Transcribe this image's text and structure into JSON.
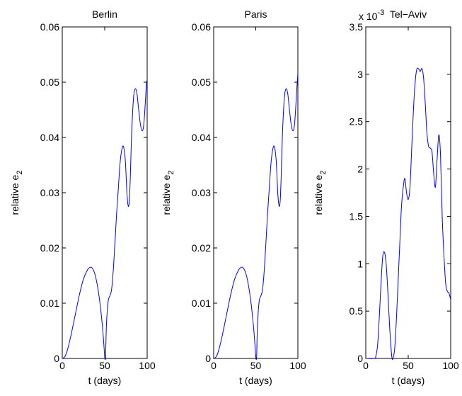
{
  "chart_data": [
    {
      "type": "line",
      "title": "Berlin",
      "xlabel": "t (days)",
      "ylabel": "relative e",
      "ylabel_sub": "2",
      "xlim": [
        0,
        100
      ],
      "ylim": [
        0,
        0.06
      ],
      "xticks": [
        0,
        50,
        100
      ],
      "xtick_labels": [
        "0",
        "50",
        "100"
      ],
      "yticks": [
        0,
        0.01,
        0.02,
        0.03,
        0.04,
        0.05,
        0.06
      ],
      "ytick_labels": [
        "0",
        "0.01",
        "0.02",
        "0.03",
        "0.04",
        "0.05",
        "0.06"
      ],
      "multiplier": "",
      "grid": false,
      "color": "#0000ff",
      "series": [
        {
          "x": [
            0,
            3,
            6,
            10,
            15,
            20,
            25,
            30,
            33,
            35,
            38,
            41,
            44,
            47,
            49,
            50,
            51,
            52,
            54,
            56,
            58,
            60,
            62,
            64,
            66,
            68,
            70,
            72,
            74,
            75,
            76,
            77,
            78,
            79,
            80,
            81,
            82,
            84,
            86,
            88,
            90,
            92,
            94,
            96,
            98,
            99,
            100
          ],
          "y": [
            0,
            0.0003,
            0.0015,
            0.004,
            0.0077,
            0.0114,
            0.0144,
            0.0161,
            0.0165,
            0.0164,
            0.0155,
            0.0135,
            0.0105,
            0.0063,
            0.0025,
            0.0003,
            0.0003,
            0.006,
            0.0103,
            0.0113,
            0.0124,
            0.0158,
            0.0208,
            0.0262,
            0.0307,
            0.0352,
            0.0377,
            0.0384,
            0.0363,
            0.0337,
            0.0303,
            0.0283,
            0.0275,
            0.0285,
            0.0321,
            0.0373,
            0.0418,
            0.0473,
            0.0488,
            0.0479,
            0.045,
            0.0424,
            0.0412,
            0.0423,
            0.0468,
            0.0494,
            0.0505
          ]
        }
      ]
    },
    {
      "type": "line",
      "title": "Paris",
      "xlabel": "t (days)",
      "ylabel": "relative e",
      "ylabel_sub": "2",
      "xlim": [
        0,
        100
      ],
      "ylim": [
        0,
        0.06
      ],
      "xticks": [
        0,
        50,
        100
      ],
      "xtick_labels": [
        "0",
        "50",
        "100"
      ],
      "yticks": [
        0,
        0.01,
        0.02,
        0.03,
        0.04,
        0.05,
        0.06
      ],
      "ytick_labels": [
        "0",
        "0.01",
        "0.02",
        "0.03",
        "0.04",
        "0.05",
        "0.06"
      ],
      "multiplier": "",
      "grid": false,
      "color": "#0000ff",
      "series": [
        {
          "x": [
            0,
            3,
            6,
            10,
            15,
            20,
            25,
            30,
            33,
            35,
            38,
            41,
            44,
            47,
            49,
            50,
            51,
            52,
            54,
            56,
            58,
            60,
            62,
            64,
            66,
            68,
            70,
            72,
            74,
            75,
            76,
            77,
            78,
            79,
            80,
            81,
            82,
            84,
            86,
            88,
            90,
            92,
            94,
            96,
            98,
            99,
            100
          ],
          "y": [
            0,
            0.0003,
            0.0015,
            0.004,
            0.0077,
            0.0114,
            0.0144,
            0.0161,
            0.0165,
            0.0164,
            0.0155,
            0.0135,
            0.0105,
            0.0063,
            0.0025,
            0.0003,
            0.0003,
            0.006,
            0.0103,
            0.0113,
            0.0124,
            0.0158,
            0.0208,
            0.0262,
            0.0307,
            0.0352,
            0.0377,
            0.0384,
            0.0363,
            0.0337,
            0.0303,
            0.0283,
            0.0275,
            0.0285,
            0.0321,
            0.0373,
            0.0418,
            0.0473,
            0.0488,
            0.0479,
            0.045,
            0.0424,
            0.0412,
            0.0423,
            0.0468,
            0.0494,
            0.0515
          ]
        }
      ]
    },
    {
      "type": "line",
      "title": "Tel−Aviv",
      "xlabel": "t (days)",
      "ylabel": "relative e",
      "ylabel_sub": "2",
      "xlim": [
        0,
        100
      ],
      "ylim": [
        0,
        0.0035
      ],
      "xticks": [
        0,
        50,
        100
      ],
      "xtick_labels": [
        "0",
        "50",
        "100"
      ],
      "yticks": [
        0,
        0.0005,
        0.001,
        0.0015,
        0.002,
        0.0025,
        0.003,
        0.0035
      ],
      "ytick_labels": [
        "0",
        "0.5",
        "1",
        "1.5",
        "2",
        "2.5",
        "3",
        "3.5"
      ],
      "multiplier": "x 10",
      "multiplier_exp": "-3",
      "grid": false,
      "color": "#0000ff",
      "series": [
        {
          "x": [
            0,
            10,
            12,
            14,
            16,
            18,
            20,
            22,
            24,
            26,
            28,
            30,
            31,
            32,
            34,
            36,
            38,
            40,
            42,
            44,
            46,
            48,
            50,
            52,
            54,
            56,
            58,
            60,
            62,
            64,
            66,
            68,
            70,
            72,
            74,
            76,
            78,
            80,
            82,
            84,
            86,
            88,
            90,
            92,
            94,
            96,
            98,
            100
          ],
          "y": [
            0,
            0,
            3e-05,
            0.00015,
            0.00045,
            0.0008,
            0.00108,
            0.00112,
            0.001,
            0.0007,
            0.00035,
            8e-05,
            0,
            0,
            0.0001,
            0.0004,
            0.0008,
            0.0012,
            0.0016,
            0.0018,
            0.0019,
            0.00175,
            0.00168,
            0.0018,
            0.0022,
            0.0026,
            0.0029,
            0.00305,
            0.00306,
            0.00303,
            0.00306,
            0.00297,
            0.0027,
            0.00238,
            0.00224,
            0.00222,
            0.00218,
            0.00195,
            0.00181,
            0.0021,
            0.00236,
            0.00215,
            0.0015,
            0.0011,
            0.0008,
            0.00071,
            0.00069,
            0.00062
          ]
        }
      ]
    }
  ]
}
